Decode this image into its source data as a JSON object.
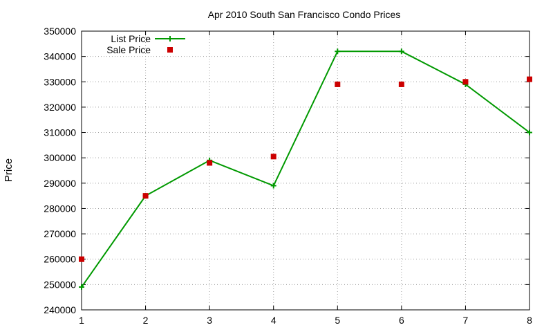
{
  "chart_data": {
    "type": "line",
    "title": "Apr 2010 South San Francisco Condo Prices",
    "xlabel": "",
    "ylabel": "Price",
    "xlim": [
      1,
      8
    ],
    "ylim": [
      240000,
      350000
    ],
    "x_ticks": [
      "1",
      "2",
      "3",
      "4",
      "5",
      "6",
      "7",
      "8"
    ],
    "y_ticks": [
      "240000",
      "250000",
      "260000",
      "270000",
      "280000",
      "290000",
      "300000",
      "310000",
      "320000",
      "330000",
      "340000",
      "350000"
    ],
    "grid": true,
    "legend_position": "top-left",
    "x": [
      1,
      2,
      3,
      4,
      5,
      6,
      7,
      8
    ],
    "series": [
      {
        "name": "List Price",
        "style": "line-with-plus-markers",
        "color": "#009900",
        "values": [
          249000,
          285000,
          299000,
          289000,
          342000,
          342000,
          329000,
          310000
        ]
      },
      {
        "name": "Sale Price",
        "style": "square-points",
        "color": "#cc0000",
        "values": [
          260000,
          285000,
          298000,
          300500,
          329000,
          329000,
          330000,
          331000
        ]
      }
    ]
  }
}
